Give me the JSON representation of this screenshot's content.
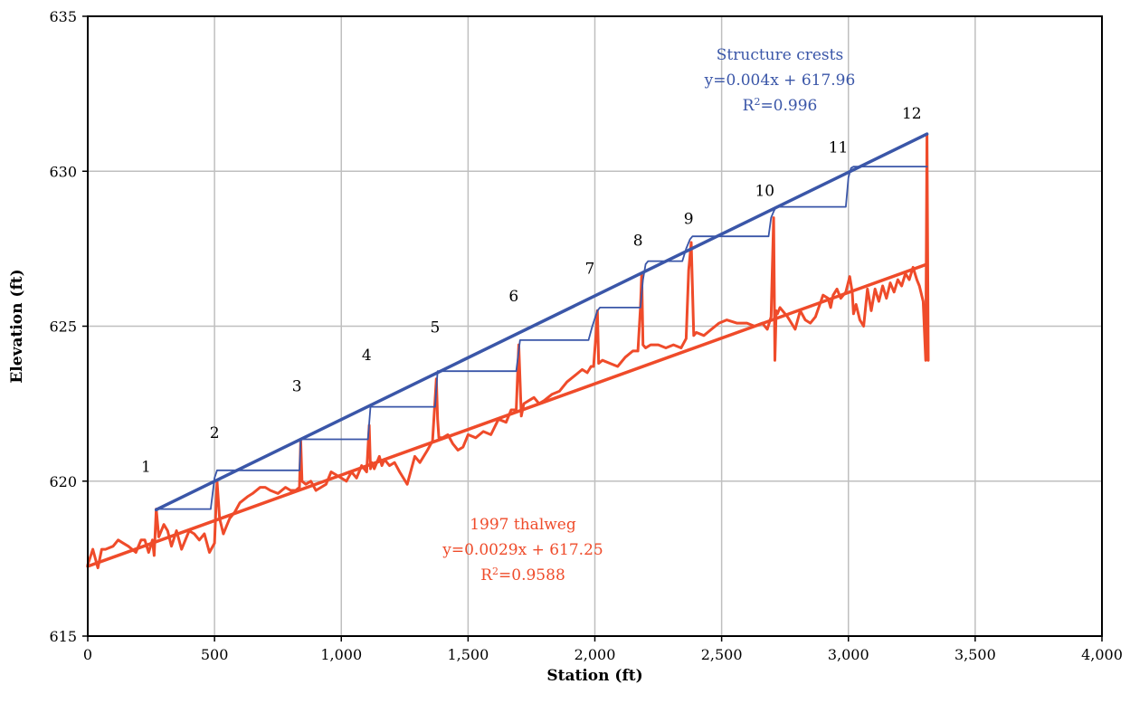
{
  "chart_data": {
    "type": "line",
    "xlabel": "Station (ft)",
    "ylabel": "Elevation (ft)",
    "xlim": [
      0,
      4000
    ],
    "ylim": [
      615,
      635
    ],
    "x_ticks": [
      0,
      500,
      1000,
      1500,
      2000,
      2500,
      3000,
      3500,
      4000
    ],
    "x_tick_labels": [
      "0",
      "500",
      "1,000",
      "1,500",
      "2,000",
      "2,500",
      "3,000",
      "3,500",
      "4,000"
    ],
    "y_ticks": [
      615,
      620,
      625,
      630,
      635
    ],
    "y_tick_labels": [
      "615",
      "620",
      "625",
      "630",
      "635"
    ],
    "grid": true,
    "colors": {
      "structure": "#3A56A8",
      "thalweg": "#EF4B2A",
      "grid": "#BFBFBF"
    },
    "structure_labels": [
      {
        "text": "1",
        "x": 230,
        "y": 620.3
      },
      {
        "text": "2",
        "x": 500,
        "y": 621.4
      },
      {
        "text": "3",
        "x": 825,
        "y": 622.9
      },
      {
        "text": "4",
        "x": 1100,
        "y": 623.9
      },
      {
        "text": "5",
        "x": 1370,
        "y": 624.8
      },
      {
        "text": "6",
        "x": 1680,
        "y": 625.8
      },
      {
        "text": "7",
        "x": 1980,
        "y": 626.7
      },
      {
        "text": "8",
        "x": 2170,
        "y": 627.6
      },
      {
        "text": "9",
        "x": 2370,
        "y": 628.3
      },
      {
        "text": "10",
        "x": 2670,
        "y": 629.2
      },
      {
        "text": "11",
        "x": 2960,
        "y": 630.6
      },
      {
        "text": "12",
        "x": 3250,
        "y": 631.7
      }
    ],
    "series": [
      {
        "name": "Structure crests",
        "kind": "step",
        "x": [
          270,
          485,
          500,
          510,
          835,
          840,
          1105,
          1115,
          1370,
          1380,
          1690,
          1705,
          1975,
          1990,
          2010,
          2020,
          2180,
          2190,
          2200,
          2210,
          2345,
          2360,
          2375,
          2385,
          2685,
          2695,
          2705,
          2715,
          2990,
          3000,
          3010,
          3020,
          3310
        ],
        "y": [
          619.1,
          619.1,
          620.1,
          620.35,
          620.35,
          621.35,
          621.35,
          622.4,
          622.4,
          623.55,
          623.55,
          624.55,
          624.55,
          625.0,
          625.5,
          625.6,
          625.6,
          626.5,
          627.0,
          627.1,
          627.1,
          627.5,
          627.8,
          627.9,
          627.9,
          628.5,
          628.7,
          628.85,
          628.85,
          629.8,
          630.1,
          630.15,
          630.15
        ]
      },
      {
        "name": "Structure crests trendline",
        "kind": "trend",
        "x": [
          270,
          3310
        ],
        "y": [
          619.08,
          631.2
        ]
      },
      {
        "name": "1997 thalweg",
        "kind": "profile",
        "x": [
          0,
          20,
          40,
          55,
          70,
          100,
          120,
          140,
          160,
          190,
          210,
          225,
          240,
          255,
          262,
          270,
          280,
          300,
          315,
          330,
          350,
          370,
          400,
          420,
          440,
          460,
          480,
          500,
          510,
          520,
          535,
          545,
          560,
          580,
          600,
          630,
          650,
          680,
          700,
          720,
          750,
          780,
          800,
          820,
          835,
          840,
          845,
          860,
          880,
          900,
          920,
          940,
          960,
          980,
          1000,
          1020,
          1040,
          1060,
          1080,
          1100,
          1110,
          1115,
          1120,
          1130,
          1150,
          1160,
          1170,
          1190,
          1210,
          1230,
          1260,
          1290,
          1310,
          1340,
          1360,
          1375,
          1380,
          1385,
          1400,
          1420,
          1440,
          1460,
          1480,
          1500,
          1530,
          1560,
          1590,
          1620,
          1650,
          1670,
          1690,
          1700,
          1710,
          1720,
          1740,
          1760,
          1780,
          1800,
          1830,
          1860,
          1890,
          1920,
          1950,
          1970,
          1985,
          1995,
          2005,
          2010,
          2015,
          2030,
          2060,
          2090,
          2120,
          2150,
          2170,
          2180,
          2185,
          2190,
          2200,
          2220,
          2250,
          2280,
          2310,
          2340,
          2360,
          2370,
          2380,
          2390,
          2400,
          2430,
          2460,
          2490,
          2520,
          2560,
          2600,
          2630,
          2660,
          2680,
          2695,
          2705,
          2710,
          2715,
          2720,
          2730,
          2760,
          2790,
          2810,
          2830,
          2850,
          2870,
          2900,
          2920,
          2930,
          2940,
          2955,
          2970,
          2990,
          3005,
          3015,
          3020,
          3030,
          3045,
          3060,
          3075,
          3090,
          3105,
          3120,
          3135,
          3150,
          3165,
          3180,
          3195,
          3210,
          3225,
          3240,
          3255,
          3270,
          3280,
          3295,
          3305,
          3310,
          3315
        ],
        "y": [
          617.3,
          617.8,
          617.2,
          617.8,
          617.8,
          617.9,
          618.1,
          618.0,
          617.9,
          617.7,
          618.1,
          618.1,
          617.7,
          618.1,
          617.6,
          619.1,
          618.2,
          618.6,
          618.4,
          617.9,
          618.4,
          617.8,
          618.4,
          618.3,
          618.1,
          618.3,
          617.7,
          618.0,
          620.0,
          618.8,
          618.3,
          618.5,
          618.8,
          619.0,
          619.3,
          619.5,
          619.6,
          619.8,
          619.8,
          619.7,
          619.6,
          619.8,
          619.7,
          619.7,
          619.8,
          621.3,
          620.0,
          619.9,
          620.0,
          619.7,
          619.8,
          619.9,
          620.3,
          620.2,
          620.1,
          620.0,
          620.3,
          620.1,
          620.5,
          620.3,
          621.8,
          620.4,
          620.6,
          620.4,
          620.8,
          620.5,
          620.7,
          620.5,
          620.6,
          620.3,
          619.9,
          620.8,
          620.6,
          621.0,
          621.3,
          623.3,
          622.0,
          621.4,
          621.4,
          621.5,
          621.2,
          621.0,
          621.1,
          621.5,
          621.4,
          621.6,
          621.5,
          622.0,
          621.9,
          622.3,
          622.3,
          624.4,
          622.1,
          622.5,
          622.6,
          622.7,
          622.5,
          622.6,
          622.8,
          622.9,
          623.2,
          623.4,
          623.6,
          623.5,
          623.7,
          623.7,
          624.8,
          625.5,
          623.8,
          623.9,
          623.8,
          623.7,
          624.0,
          624.2,
          624.2,
          625.6,
          626.7,
          624.4,
          624.3,
          624.4,
          624.4,
          624.3,
          624.4,
          624.3,
          624.6,
          626.8,
          627.7,
          624.7,
          624.8,
          624.7,
          624.9,
          625.1,
          625.2,
          625.1,
          625.1,
          625.0,
          625.1,
          624.9,
          625.3,
          628.5,
          623.9,
          625.5,
          625.4,
          625.6,
          625.3,
          624.9,
          625.5,
          625.2,
          625.1,
          625.3,
          626.0,
          625.9,
          625.6,
          626.0,
          626.2,
          625.9,
          626.1,
          626.6,
          626.1,
          625.4,
          625.7,
          625.2,
          625.0,
          626.2,
          625.5,
          626.2,
          625.8,
          626.3,
          625.9,
          626.4,
          626.1,
          626.5,
          626.3,
          626.7,
          626.5,
          626.9,
          626.5,
          626.3,
          625.8,
          623.9,
          631.2,
          623.9
        ]
      },
      {
        "name": "1997 thalweg trendline",
        "kind": "trend",
        "x": [
          0,
          3310
        ],
        "y": [
          617.25,
          627.0
        ]
      }
    ],
    "annotations": [
      {
        "id": "structure",
        "lines": [
          "Structure crests",
          "y=0.004x + 617.96"
        ],
        "r2_value": "=0.996"
      },
      {
        "id": "thalweg",
        "lines": [
          "1997 thalweg",
          "y=0.0029x + 617.25"
        ],
        "r2_value": "=0.9588"
      }
    ],
    "r2_symbol": "R",
    "r2_superscript": "2"
  }
}
